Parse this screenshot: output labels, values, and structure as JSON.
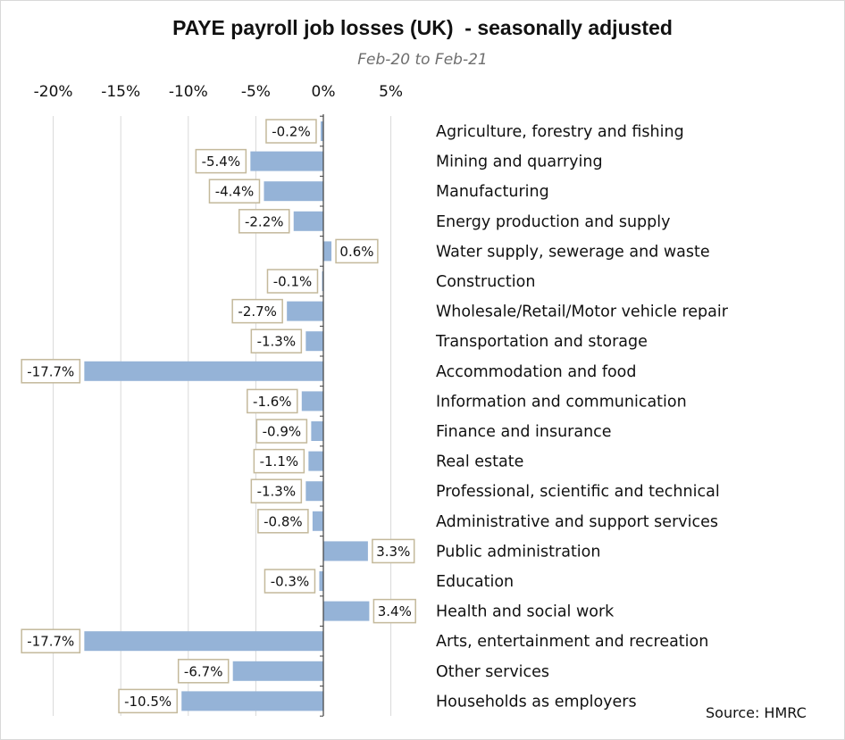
{
  "chart_data": {
    "type": "bar",
    "orientation": "horizontal",
    "title": "PAYE payroll job losses (UK)  - seasonally adjusted",
    "subtitle": "Feb-20 to Feb-21",
    "source": "Source: HMRC",
    "x_ticks": [
      "-20%",
      "-15%",
      "-10%",
      "-5%",
      "0%",
      "5%"
    ],
    "xlim": [
      -20,
      5
    ],
    "grid": true,
    "bar_color": "#95b3d7",
    "label_border_color": "#c4b99b",
    "categories": [
      "Agriculture, forestry and fishing",
      "Mining and quarrying",
      "Manufacturing",
      "Energy production and supply",
      "Water supply, sewerage and waste",
      "Construction",
      "Wholesale/Retail/Motor vehicle repair",
      "Transportation and storage",
      "Accommodation and food",
      "Information and communication",
      "Finance and insurance",
      "Real estate",
      "Professional, scientific and technical",
      "Administrative and support services",
      "Public administration",
      "Education",
      "Health and social work",
      "Arts, entertainment and recreation",
      "Other services",
      "Households as employers"
    ],
    "values": [
      -0.2,
      -5.4,
      -4.4,
      -2.2,
      0.6,
      -0.1,
      -2.7,
      -1.3,
      -17.7,
      -1.6,
      -0.9,
      -1.1,
      -1.3,
      -0.8,
      3.3,
      -0.3,
      3.4,
      -17.7,
      -6.7,
      -10.5
    ],
    "value_labels": [
      "-0.2%",
      "-5.4%",
      "-4.4%",
      "-2.2%",
      "0.6%",
      "-0.1%",
      "-2.7%",
      "-1.3%",
      "-17.7%",
      "-1.6%",
      "-0.9%",
      "-1.1%",
      "-1.3%",
      "-0.8%",
      "3.3%",
      "-0.3%",
      "3.4%",
      "-17.7%",
      "-6.7%",
      "-10.5%"
    ]
  }
}
